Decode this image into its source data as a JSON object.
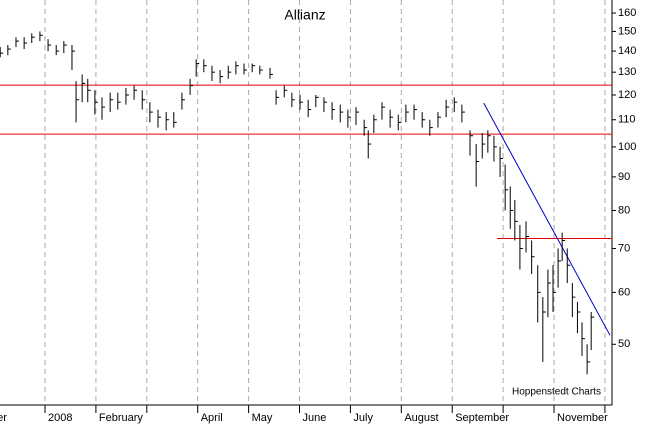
{
  "chart_data": {
    "type": "ohlc",
    "title": "Allianz",
    "annotation": "Hoppenstedt Charts",
    "log_scale": true,
    "ylim": [
      40.4,
      167.5
    ],
    "yticks": [
      50,
      60,
      70,
      80,
      90,
      100,
      110,
      120,
      130,
      140,
      150,
      160
    ],
    "xlim": [
      -0.884,
      11.139
    ],
    "xticks": [
      {
        "value": -1,
        "label": "er"
      },
      {
        "value": 0,
        "label": "2008"
      },
      {
        "value": 1,
        "label": "February"
      },
      {
        "value": 2,
        "label": null
      },
      {
        "value": 3,
        "label": "April"
      },
      {
        "value": 4,
        "label": "May"
      },
      {
        "value": 5,
        "label": "June"
      },
      {
        "value": 6,
        "label": "July"
      },
      {
        "value": 7,
        "label": "August"
      },
      {
        "value": 8,
        "label": "September"
      },
      {
        "value": 9,
        "label": null
      },
      {
        "value": 10,
        "label": "November"
      },
      {
        "value": 11,
        "label": null
      }
    ],
    "grid": true,
    "color": "#000000",
    "x": [
      -0.88,
      -0.73,
      -0.57,
      -0.41,
      -0.26,
      -0.1,
      0.06,
      0.22,
      0.37,
      0.53,
      0.61,
      0.73,
      0.84,
      0.98,
      1.12,
      1.28,
      1.43,
      1.59,
      1.75,
      1.91,
      2.06,
      2.22,
      2.38,
      2.53,
      2.69,
      2.85,
      2.97,
      3.12,
      3.28,
      3.44,
      3.6,
      3.75,
      3.91,
      4.07,
      4.22,
      4.42,
      4.54,
      4.7,
      4.85,
      5.01,
      5.17,
      5.32,
      5.48,
      5.64,
      5.8,
      5.95,
      6.11,
      6.27,
      6.35,
      6.46,
      6.62,
      6.78,
      6.94,
      7.09,
      7.25,
      7.41,
      7.56,
      7.72,
      7.88,
      8.04,
      8.19,
      8.35,
      8.47,
      8.59,
      8.7,
      8.82,
      8.94,
      9.04,
      9.14,
      9.23,
      9.33,
      9.45,
      9.56,
      9.68,
      9.78,
      9.88,
      9.98,
      10.08,
      10.16,
      10.26,
      10.36,
      10.46,
      10.55,
      10.65,
      10.73
    ],
    "high": [
      142,
      143,
      147,
      147,
      149,
      150,
      146,
      143,
      145,
      143,
      126,
      129,
      127,
      122,
      119,
      121,
      121,
      123,
      124,
      122,
      117,
      114,
      113,
      113,
      121,
      127,
      136,
      136,
      133,
      131,
      133,
      135,
      134,
      134,
      133,
      132,
      122,
      124,
      121,
      120,
      118,
      120,
      119,
      117,
      116,
      114,
      115,
      110,
      106,
      112,
      117,
      114,
      112,
      116,
      116,
      113,
      110,
      113,
      118,
      119,
      116,
      106,
      101,
      105,
      106,
      104,
      100,
      94,
      87,
      83,
      76,
      77,
      72,
      66,
      59,
      65,
      66,
      70,
      74,
      70,
      62,
      58,
      54,
      50,
      56
    ],
    "low": [
      137,
      138,
      142,
      141,
      144,
      145,
      140,
      138,
      139,
      131,
      109,
      117,
      117,
      112,
      110,
      113,
      114,
      116,
      118,
      114,
      109,
      107,
      106,
      107,
      114,
      120,
      128,
      130,
      126,
      125,
      127,
      129,
      129,
      130,
      129,
      127,
      116,
      119,
      115,
      114,
      111,
      115,
      113,
      110,
      109,
      107,
      108,
      104,
      96,
      105,
      110,
      107,
      106,
      109,
      110,
      107,
      104,
      107,
      111,
      113,
      109,
      97,
      87,
      96,
      98,
      95,
      90,
      80,
      75,
      72,
      65,
      69,
      64,
      54,
      47,
      55,
      56,
      61,
      67,
      62,
      55,
      52,
      48,
      45,
      49
    ],
    "close": [
      139,
      141,
      145,
      144,
      147,
      148,
      143,
      140,
      143,
      140,
      118,
      125,
      122,
      117,
      115,
      118,
      117,
      120,
      122,
      118,
      113,
      111,
      110,
      109,
      118,
      124,
      134,
      133,
      130,
      128,
      130,
      133,
      131,
      133,
      131,
      129,
      119,
      122,
      118,
      117,
      114,
      119,
      117,
      114,
      113,
      111,
      113,
      107,
      101,
      110,
      115,
      111,
      109,
      113,
      114,
      110,
      107,
      111,
      115,
      117,
      113,
      104,
      95,
      101,
      104,
      100,
      96,
      86,
      80,
      77,
      70,
      73,
      68,
      60,
      56,
      62,
      60,
      67,
      72,
      66,
      59,
      56,
      51,
      47,
      55
    ],
    "lines": [
      {
        "y": [
          124.2,
          124.2
        ],
        "color": "#e00000"
      },
      {
        "y": [
          104.6,
          104.6
        ],
        "color": "#e00000"
      },
      {
        "x": [
          8.88,
          11.14
        ],
        "y": [
          72.5,
          72.5
        ],
        "color": "#e00000"
      },
      {
        "x": [
          8.62,
          11.1
        ],
        "y": [
          116.6,
          51.6
        ],
        "color": "#0000cc"
      }
    ]
  }
}
